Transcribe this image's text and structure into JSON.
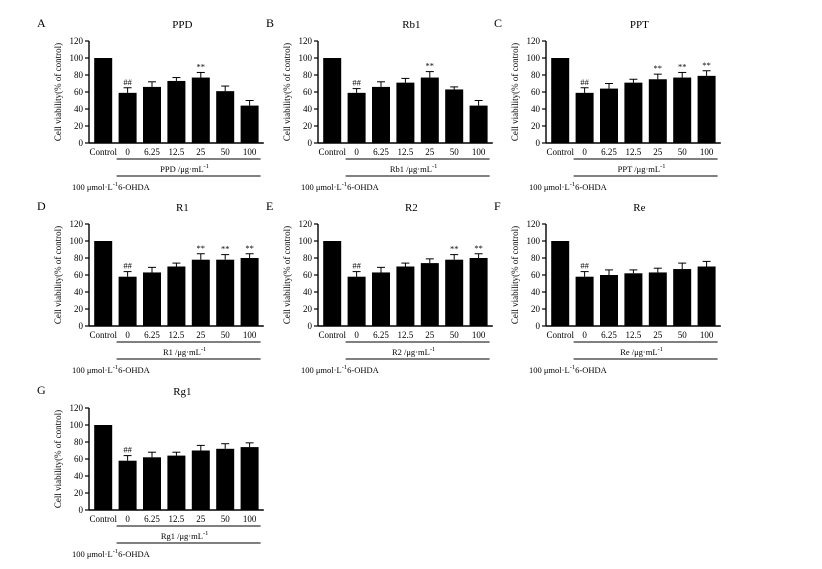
{
  "chart_data": [
    {
      "type": "bar",
      "letter": "A",
      "title": "PPD",
      "categories": [
        "Control",
        "0",
        "6.25",
        "12.5",
        "25",
        "50",
        "100"
      ],
      "values": [
        100,
        59,
        66,
        73,
        77,
        61,
        44
      ],
      "errors": [
        0,
        6,
        6,
        4,
        6,
        6,
        6
      ],
      "marks": [
        "",
        "##",
        "",
        "",
        "**",
        "",
        ""
      ],
      "ylabel": "Cell viability(% of control)",
      "yticks": [
        0,
        20,
        40,
        60,
        80,
        100,
        120
      ],
      "ylim": [
        0,
        120
      ],
      "dose_label": "PPD /μg·mL",
      "dose_sup": "-1",
      "ohda_pre": "100 μmol·L",
      "ohda_sup": "-1",
      "ohda_post": "6-OHDA"
    },
    {
      "type": "bar",
      "letter": "B",
      "title": "Rb1",
      "categories": [
        "Control",
        "0",
        "6.25",
        "12.5",
        "25",
        "50",
        "100"
      ],
      "values": [
        100,
        59,
        66,
        71,
        77,
        63,
        44
      ],
      "errors": [
        0,
        5,
        6,
        5,
        7,
        3,
        6
      ],
      "marks": [
        "",
        "##",
        "",
        "",
        "**",
        "",
        ""
      ],
      "ylabel": "Cell viability(% of control)",
      "yticks": [
        0,
        20,
        40,
        60,
        80,
        100,
        120
      ],
      "ylim": [
        0,
        120
      ],
      "dose_label": "Rb1 /μg·mL",
      "dose_sup": "-1",
      "ohda_pre": "100 μmol·L",
      "ohda_sup": "-1",
      "ohda_post": "6-OHDA"
    },
    {
      "type": "bar",
      "letter": "C",
      "title": "PPT",
      "categories": [
        "Control",
        "0",
        "6.25",
        "12.5",
        "25",
        "50",
        "100"
      ],
      "values": [
        100,
        59,
        64,
        71,
        75,
        77,
        79
      ],
      "errors": [
        0,
        6,
        6,
        4,
        6,
        6,
        6
      ],
      "marks": [
        "",
        "##",
        "",
        "",
        "**",
        "**",
        "**"
      ],
      "ylabel": "Cell viability(% of control)",
      "yticks": [
        0,
        20,
        40,
        60,
        80,
        100,
        120
      ],
      "ylim": [
        0,
        120
      ],
      "dose_label": "PPT /μg·mL",
      "dose_sup": "-1",
      "ohda_pre": "100 μmol·L",
      "ohda_sup": "-1",
      "ohda_post": "6-OHDA"
    },
    {
      "type": "bar",
      "letter": "D",
      "title": "R1",
      "categories": [
        "Control",
        "0",
        "6.25",
        "12.5",
        "25",
        "50",
        "100"
      ],
      "values": [
        100,
        58,
        63,
        70,
        78,
        78,
        80
      ],
      "errors": [
        0,
        6,
        6,
        4,
        7,
        6,
        5
      ],
      "marks": [
        "",
        "##",
        "",
        "",
        "**",
        "**",
        "**"
      ],
      "ylabel": "Cell viability(% of control)",
      "yticks": [
        0,
        20,
        40,
        60,
        80,
        100,
        120
      ],
      "ylim": [
        0,
        120
      ],
      "dose_label": "R1 /μg·mL",
      "dose_sup": "-1",
      "ohda_pre": "100 μmol·L",
      "ohda_sup": "-1",
      "ohda_post": "6-OHDA"
    },
    {
      "type": "bar",
      "letter": "E",
      "title": "R2",
      "categories": [
        "Control",
        "0",
        "6.25",
        "12.5",
        "25",
        "50",
        "100"
      ],
      "values": [
        100,
        58,
        63,
        70,
        74,
        78,
        80
      ],
      "errors": [
        0,
        6,
        6,
        4,
        5,
        6,
        5
      ],
      "marks": [
        "",
        "##",
        "",
        "",
        "",
        "**",
        "**"
      ],
      "ylabel": "Cell viability(% of control)",
      "yticks": [
        0,
        20,
        40,
        60,
        80,
        100,
        120
      ],
      "ylim": [
        0,
        120
      ],
      "dose_label": "R2 /μg·mL",
      "dose_sup": "-1",
      "ohda_pre": "100 μmol·L",
      "ohda_sup": "-1",
      "ohda_post": "6-OHDA"
    },
    {
      "type": "bar",
      "letter": "F",
      "title": "Re",
      "categories": [
        "Control",
        "0",
        "6.25",
        "12.5",
        "25",
        "50",
        "100"
      ],
      "values": [
        100,
        58,
        60,
        62,
        63,
        67,
        70
      ],
      "errors": [
        0,
        6,
        6,
        4,
        5,
        7,
        6
      ],
      "marks": [
        "",
        "##",
        "",
        "",
        "",
        "",
        ""
      ],
      "ylabel": "Cell viability(% of control)",
      "yticks": [
        0,
        20,
        40,
        60,
        80,
        100,
        120
      ],
      "ylim": [
        0,
        120
      ],
      "dose_label": "Re /μg·mL",
      "dose_sup": "-1",
      "ohda_pre": "100 μmol·L",
      "ohda_sup": "-1",
      "ohda_post": "6-OHDA"
    },
    {
      "type": "bar",
      "letter": "G",
      "title": "Rg1",
      "categories": [
        "Control",
        "0",
        "6.25",
        "12.5",
        "25",
        "50",
        "100"
      ],
      "values": [
        100,
        58,
        62,
        64,
        70,
        72,
        74
      ],
      "errors": [
        0,
        6,
        6,
        4,
        6,
        6,
        5
      ],
      "marks": [
        "",
        "##",
        "",
        "",
        "",
        "",
        ""
      ],
      "ylabel": "Cell viability(% of control)",
      "yticks": [
        0,
        20,
        40,
        60,
        80,
        100,
        120
      ],
      "ylim": [
        0,
        120
      ],
      "dose_label": "Rg1 /μg·mL",
      "dose_sup": "-1",
      "ohda_pre": "100 μmol·L",
      "ohda_sup": "-1",
      "ohda_post": "6-OHDA"
    }
  ]
}
